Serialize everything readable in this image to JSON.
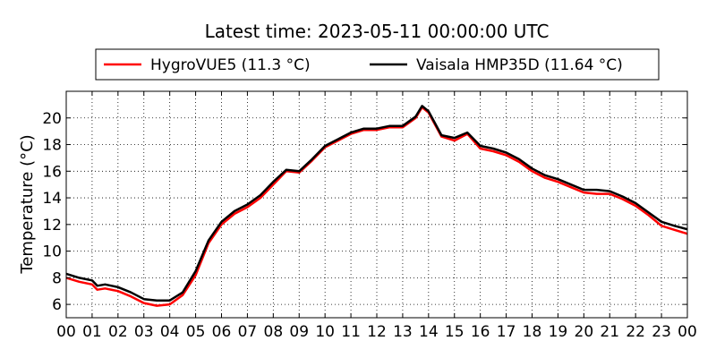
{
  "chart_data": {
    "type": "line",
    "title": "Latest time: 2023-05-11 00:00:00 UTC",
    "xlabel": "",
    "ylabel": "Temperature (°C)",
    "x_unit": "hour",
    "xlim": [
      0,
      24
    ],
    "ylim": [
      5,
      22
    ],
    "x_ticks": [
      0,
      1,
      2,
      3,
      4,
      5,
      6,
      7,
      8,
      9,
      10,
      11,
      12,
      13,
      14,
      15,
      16,
      17,
      18,
      19,
      20,
      21,
      22,
      23,
      24
    ],
    "x_tick_labels": [
      "00",
      "01",
      "02",
      "03",
      "04",
      "05",
      "06",
      "07",
      "08",
      "09",
      "10",
      "11",
      "12",
      "13",
      "14",
      "15",
      "16",
      "17",
      "18",
      "19",
      "20",
      "21",
      "22",
      "23",
      "00"
    ],
    "y_ticks": [
      6,
      8,
      10,
      12,
      14,
      16,
      18,
      20
    ],
    "y_tick_labels": [
      "6",
      "8",
      "10",
      "12",
      "14",
      "16",
      "18",
      "20"
    ],
    "grid": true,
    "legend_position": "top-center",
    "x": [
      0,
      0.5,
      1,
      1.2,
      1.5,
      2,
      2.5,
      3,
      3.5,
      4,
      4.5,
      5,
      5.5,
      6,
      6.5,
      7,
      7.5,
      8,
      8.5,
      9,
      9.5,
      10,
      10.5,
      11,
      11.5,
      12,
      12.5,
      13,
      13.5,
      13.75,
      14,
      14.5,
      15,
      15.5,
      16,
      16.5,
      17,
      17.5,
      18,
      18.5,
      19,
      19.5,
      20,
      20.5,
      21,
      21.5,
      22,
      22.5,
      23,
      23.5,
      24
    ],
    "series": [
      {
        "name": "HygroVUE5 (11.3 °C)",
        "color": "#ff0000",
        "values": [
          8.0,
          7.7,
          7.5,
          7.1,
          7.2,
          7.0,
          6.6,
          6.1,
          5.9,
          6.0,
          6.7,
          8.2,
          10.6,
          12.0,
          12.8,
          13.3,
          14.0,
          15.0,
          16.0,
          15.9,
          16.8,
          17.8,
          18.3,
          18.8,
          19.1,
          19.1,
          19.3,
          19.3,
          20.0,
          20.8,
          20.4,
          18.6,
          18.3,
          18.8,
          17.7,
          17.5,
          17.2,
          16.7,
          16.0,
          15.5,
          15.2,
          14.8,
          14.4,
          14.3,
          14.3,
          13.9,
          13.4,
          12.7,
          11.9,
          11.6,
          11.3
        ]
      },
      {
        "name": "Vaisala HMP35D (11.64 °C)",
        "color": "#000000",
        "values": [
          8.3,
          8.0,
          7.8,
          7.4,
          7.5,
          7.3,
          6.9,
          6.4,
          6.3,
          6.3,
          6.9,
          8.5,
          10.8,
          12.2,
          13.0,
          13.5,
          14.2,
          15.2,
          16.1,
          16.0,
          16.9,
          17.9,
          18.4,
          18.9,
          19.2,
          19.2,
          19.4,
          19.4,
          20.1,
          20.9,
          20.5,
          18.7,
          18.5,
          18.9,
          17.9,
          17.7,
          17.4,
          16.9,
          16.2,
          15.7,
          15.4,
          15.0,
          14.6,
          14.6,
          14.5,
          14.1,
          13.6,
          12.9,
          12.2,
          11.9,
          11.64
        ]
      }
    ]
  }
}
